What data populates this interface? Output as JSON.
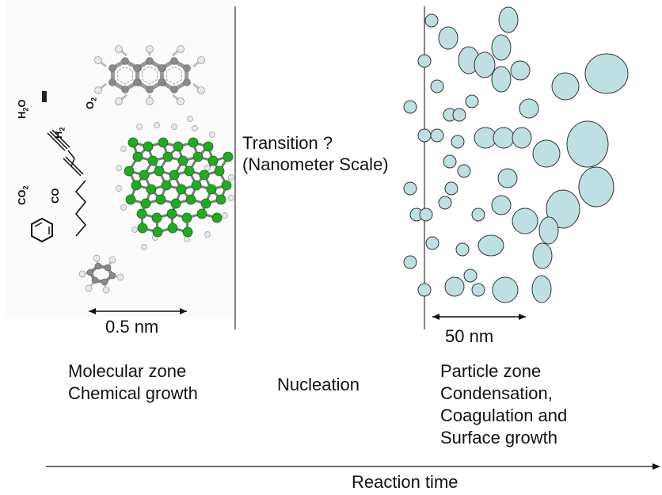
{
  "molecular_zone": {
    "species": [
      "H2O",
      "H2",
      "O2",
      "CO2",
      "CO"
    ],
    "scale_label": "0.5 nm",
    "zone_title": "Molecular zone",
    "zone_subtitle": "Chemical growth"
  },
  "transition": {
    "line1": "Transition ?",
    "line2": "(Nanometer Scale)",
    "stage_label": "Nucleation"
  },
  "particle_zone": {
    "scale_label": "50 nm",
    "zone_title": "Particle zone",
    "processes": [
      "Condensation,",
      "Coagulation and",
      "Surface growth"
    ]
  },
  "axis": {
    "label": "Reaction time"
  },
  "colors": {
    "particle_fill": "#bfe0e2",
    "carbon_green": "#22aa22",
    "hydrogen_white": "#e8e8e8",
    "carbon_gray": "#8a8a8a"
  }
}
